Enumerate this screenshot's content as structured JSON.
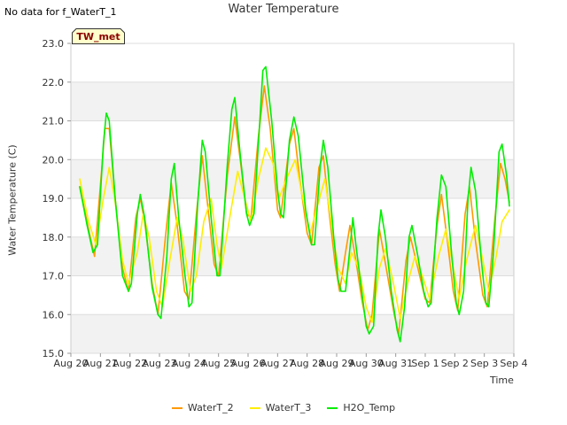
{
  "header": {
    "nodata_text": "No data for f_WaterT_1",
    "tag_label": "TW_met"
  },
  "chart_data": {
    "type": "line",
    "title": "Water Temperature",
    "xlabel": "Time",
    "ylabel": "Water Temperature (C)",
    "ylim": [
      15.0,
      23.0
    ],
    "xlim": [
      0,
      15
    ],
    "yticks": [
      "15.0",
      "16.0",
      "17.0",
      "18.0",
      "19.0",
      "20.0",
      "21.0",
      "22.0",
      "23.0"
    ],
    "xticks": [
      "Aug 20",
      "Aug 21",
      "Aug 22",
      "Aug 23",
      "Aug 24",
      "Aug 25",
      "Aug 26",
      "Aug 27",
      "Aug 28",
      "Aug 29",
      "Aug 30",
      "Aug 31",
      "Sep 1",
      "Sep 2",
      "Sep 3",
      "Sep 4"
    ],
    "grid": true,
    "legend_position": "bottom",
    "colors": {
      "WaterT_2": "#ff9900",
      "WaterT_3": "#ffee00",
      "H2O_Temp": "#00ee00"
    },
    "series": [
      {
        "name": "WaterT_2",
        "points": [
          [
            0.3,
            19.3
          ],
          [
            0.6,
            18.2
          ],
          [
            0.8,
            17.5
          ],
          [
            1.05,
            19.8
          ],
          [
            1.15,
            20.8
          ],
          [
            1.3,
            20.8
          ],
          [
            1.5,
            19.0
          ],
          [
            1.75,
            17.2
          ],
          [
            1.95,
            16.6
          ],
          [
            2.2,
            18.5
          ],
          [
            2.35,
            19.0
          ],
          [
            2.5,
            18.4
          ],
          [
            2.75,
            16.8
          ],
          [
            2.95,
            16.0
          ],
          [
            3.2,
            18.0
          ],
          [
            3.4,
            19.4
          ],
          [
            3.6,
            18.3
          ],
          [
            3.85,
            16.6
          ],
          [
            4.0,
            16.4
          ],
          [
            4.25,
            18.6
          ],
          [
            4.45,
            20.1
          ],
          [
            4.65,
            18.7
          ],
          [
            4.85,
            17.3
          ],
          [
            5.0,
            17.0
          ],
          [
            5.3,
            19.6
          ],
          [
            5.55,
            21.1
          ],
          [
            5.75,
            19.9
          ],
          [
            5.95,
            18.6
          ],
          [
            6.1,
            18.5
          ],
          [
            6.35,
            20.6
          ],
          [
            6.55,
            21.9
          ],
          [
            6.75,
            20.8
          ],
          [
            7.0,
            18.7
          ],
          [
            7.1,
            18.5
          ],
          [
            7.4,
            20.4
          ],
          [
            7.55,
            20.8
          ],
          [
            7.75,
            19.5
          ],
          [
            8.0,
            18.1
          ],
          [
            8.15,
            17.8
          ],
          [
            8.4,
            19.8
          ],
          [
            8.55,
            20.1
          ],
          [
            8.75,
            18.6
          ],
          [
            8.95,
            17.3
          ],
          [
            9.1,
            16.6
          ],
          [
            9.3,
            17.6
          ],
          [
            9.45,
            18.3
          ],
          [
            9.65,
            17.4
          ],
          [
            9.85,
            16.4
          ],
          [
            10.05,
            15.6
          ],
          [
            10.2,
            16.0
          ],
          [
            10.45,
            18.2
          ],
          [
            10.7,
            17.1
          ],
          [
            10.95,
            16.0
          ],
          [
            11.1,
            15.5
          ],
          [
            11.35,
            17.4
          ],
          [
            11.5,
            18.0
          ],
          [
            11.75,
            17.2
          ],
          [
            12.0,
            16.4
          ],
          [
            12.15,
            16.3
          ],
          [
            12.4,
            18.3
          ],
          [
            12.55,
            19.1
          ],
          [
            12.75,
            17.9
          ],
          [
            12.95,
            16.6
          ],
          [
            13.1,
            16.1
          ],
          [
            13.35,
            18.6
          ],
          [
            13.5,
            19.3
          ],
          [
            13.7,
            17.9
          ],
          [
            13.95,
            16.5
          ],
          [
            14.1,
            16.2
          ],
          [
            14.35,
            18.4
          ],
          [
            14.55,
            19.9
          ],
          [
            14.7,
            19.5
          ],
          [
            14.85,
            18.9
          ]
        ]
      },
      {
        "name": "WaterT_3",
        "points": [
          [
            0.3,
            19.5
          ],
          [
            0.6,
            18.4
          ],
          [
            0.85,
            17.8
          ],
          [
            1.1,
            19.0
          ],
          [
            1.3,
            19.8
          ],
          [
            1.5,
            18.9
          ],
          [
            1.75,
            17.4
          ],
          [
            1.95,
            16.8
          ],
          [
            2.25,
            17.6
          ],
          [
            2.45,
            18.6
          ],
          [
            2.65,
            18.0
          ],
          [
            2.9,
            16.6
          ],
          [
            3.1,
            16.2
          ],
          [
            3.35,
            17.4
          ],
          [
            3.6,
            18.5
          ],
          [
            3.8,
            17.9
          ],
          [
            4.05,
            16.6
          ],
          [
            4.25,
            17.0
          ],
          [
            4.5,
            18.4
          ],
          [
            4.75,
            19.0
          ],
          [
            4.95,
            17.8
          ],
          [
            5.1,
            17.2
          ],
          [
            5.4,
            18.6
          ],
          [
            5.65,
            19.7
          ],
          [
            5.85,
            19.1
          ],
          [
            6.1,
            18.4
          ],
          [
            6.35,
            19.5
          ],
          [
            6.6,
            20.3
          ],
          [
            6.85,
            19.9
          ],
          [
            7.05,
            19.0
          ],
          [
            7.3,
            19.5
          ],
          [
            7.6,
            20.0
          ],
          [
            7.85,
            19.0
          ],
          [
            8.1,
            18.1
          ],
          [
            8.35,
            18.8
          ],
          [
            8.6,
            19.5
          ],
          [
            8.85,
            18.2
          ],
          [
            9.05,
            17.2
          ],
          [
            9.3,
            16.8
          ],
          [
            9.5,
            17.6
          ],
          [
            9.75,
            17.2
          ],
          [
            10.0,
            16.2
          ],
          [
            10.2,
            15.8
          ],
          [
            10.45,
            17.2
          ],
          [
            10.65,
            17.7
          ],
          [
            10.9,
            16.9
          ],
          [
            11.15,
            15.9
          ],
          [
            11.4,
            16.8
          ],
          [
            11.65,
            17.5
          ],
          [
            11.9,
            17.0
          ],
          [
            12.15,
            16.4
          ],
          [
            12.45,
            17.5
          ],
          [
            12.7,
            18.2
          ],
          [
            12.95,
            17.2
          ],
          [
            13.15,
            16.4
          ],
          [
            13.4,
            17.4
          ],
          [
            13.7,
            18.3
          ],
          [
            13.95,
            17.4
          ],
          [
            14.15,
            16.6
          ],
          [
            14.4,
            17.5
          ],
          [
            14.6,
            18.4
          ],
          [
            14.85,
            18.7
          ]
        ]
      },
      {
        "name": "H2O_Temp",
        "points": [
          [
            0.3,
            19.3
          ],
          [
            0.55,
            18.3
          ],
          [
            0.75,
            17.6
          ],
          [
            0.9,
            17.8
          ],
          [
            1.1,
            20.4
          ],
          [
            1.2,
            21.2
          ],
          [
            1.3,
            21.0
          ],
          [
            1.5,
            19.0
          ],
          [
            1.75,
            17.0
          ],
          [
            1.95,
            16.6
          ],
          [
            2.05,
            16.8
          ],
          [
            2.25,
            18.6
          ],
          [
            2.35,
            19.1
          ],
          [
            2.5,
            18.5
          ],
          [
            2.75,
            16.7
          ],
          [
            2.95,
            16.0
          ],
          [
            3.05,
            15.9
          ],
          [
            3.25,
            17.5
          ],
          [
            3.4,
            19.5
          ],
          [
            3.5,
            19.9
          ],
          [
            3.65,
            18.5
          ],
          [
            3.85,
            17.1
          ],
          [
            4.0,
            16.2
          ],
          [
            4.1,
            16.3
          ],
          [
            4.3,
            18.9
          ],
          [
            4.45,
            20.5
          ],
          [
            4.55,
            20.2
          ],
          [
            4.75,
            18.5
          ],
          [
            4.95,
            17.0
          ],
          [
            5.05,
            17.0
          ],
          [
            5.3,
            19.9
          ],
          [
            5.45,
            21.3
          ],
          [
            5.55,
            21.6
          ],
          [
            5.75,
            20.0
          ],
          [
            5.95,
            18.6
          ],
          [
            6.05,
            18.3
          ],
          [
            6.2,
            18.6
          ],
          [
            6.4,
            21.0
          ],
          [
            6.5,
            22.3
          ],
          [
            6.6,
            22.4
          ],
          [
            6.8,
            21.0
          ],
          [
            7.0,
            19.2
          ],
          [
            7.1,
            18.6
          ],
          [
            7.2,
            18.5
          ],
          [
            7.4,
            20.5
          ],
          [
            7.55,
            21.1
          ],
          [
            7.7,
            20.6
          ],
          [
            7.95,
            18.7
          ],
          [
            8.15,
            17.8
          ],
          [
            8.25,
            17.8
          ],
          [
            8.45,
            19.9
          ],
          [
            8.55,
            20.5
          ],
          [
            8.7,
            19.8
          ],
          [
            8.9,
            18.0
          ],
          [
            9.05,
            16.9
          ],
          [
            9.15,
            16.6
          ],
          [
            9.3,
            16.6
          ],
          [
            9.5,
            18.1
          ],
          [
            9.55,
            18.5
          ],
          [
            9.65,
            17.8
          ],
          [
            9.85,
            16.6
          ],
          [
            10.0,
            15.7
          ],
          [
            10.1,
            15.5
          ],
          [
            10.25,
            15.7
          ],
          [
            10.4,
            18.0
          ],
          [
            10.5,
            18.7
          ],
          [
            10.65,
            18.0
          ],
          [
            10.85,
            16.6
          ],
          [
            11.05,
            15.6
          ],
          [
            11.15,
            15.3
          ],
          [
            11.3,
            16.2
          ],
          [
            11.45,
            18.0
          ],
          [
            11.55,
            18.3
          ],
          [
            11.75,
            17.5
          ],
          [
            11.95,
            16.6
          ],
          [
            12.1,
            16.2
          ],
          [
            12.2,
            16.3
          ],
          [
            12.4,
            18.5
          ],
          [
            12.55,
            19.6
          ],
          [
            12.7,
            19.3
          ],
          [
            12.9,
            17.5
          ],
          [
            13.05,
            16.3
          ],
          [
            13.15,
            16.0
          ],
          [
            13.3,
            16.6
          ],
          [
            13.45,
            19.0
          ],
          [
            13.55,
            19.8
          ],
          [
            13.7,
            19.2
          ],
          [
            13.9,
            17.4
          ],
          [
            14.05,
            16.3
          ],
          [
            14.15,
            16.2
          ],
          [
            14.3,
            17.5
          ],
          [
            14.4,
            18.8
          ],
          [
            14.5,
            20.2
          ],
          [
            14.6,
            20.4
          ],
          [
            14.75,
            19.6
          ],
          [
            14.85,
            18.8
          ]
        ]
      }
    ]
  }
}
